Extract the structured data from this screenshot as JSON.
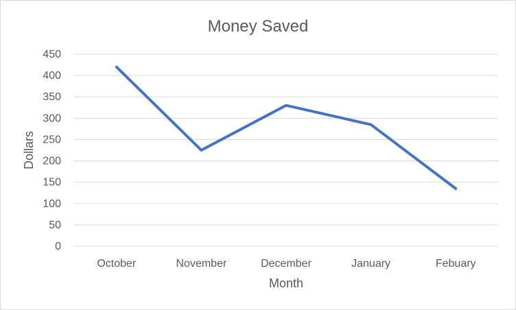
{
  "chart_data": {
    "type": "line",
    "title": "Money Saved",
    "xlabel": "Month",
    "ylabel": "Dollars",
    "categories": [
      "October",
      "November",
      "December",
      "January",
      "Febuary"
    ],
    "series": [
      {
        "values": [
          420,
          225,
          330,
          285,
          135
        ],
        "color": "#4472C4"
      }
    ],
    "ylim": [
      0,
      450
    ],
    "yticks": [
      0,
      50,
      100,
      150,
      200,
      250,
      300,
      350,
      400,
      450
    ],
    "ytick_labels": [
      "0",
      "50",
      "100",
      "150",
      "200",
      "250",
      "300",
      "350",
      "400",
      "450"
    ],
    "grid": true,
    "legend": "none"
  }
}
